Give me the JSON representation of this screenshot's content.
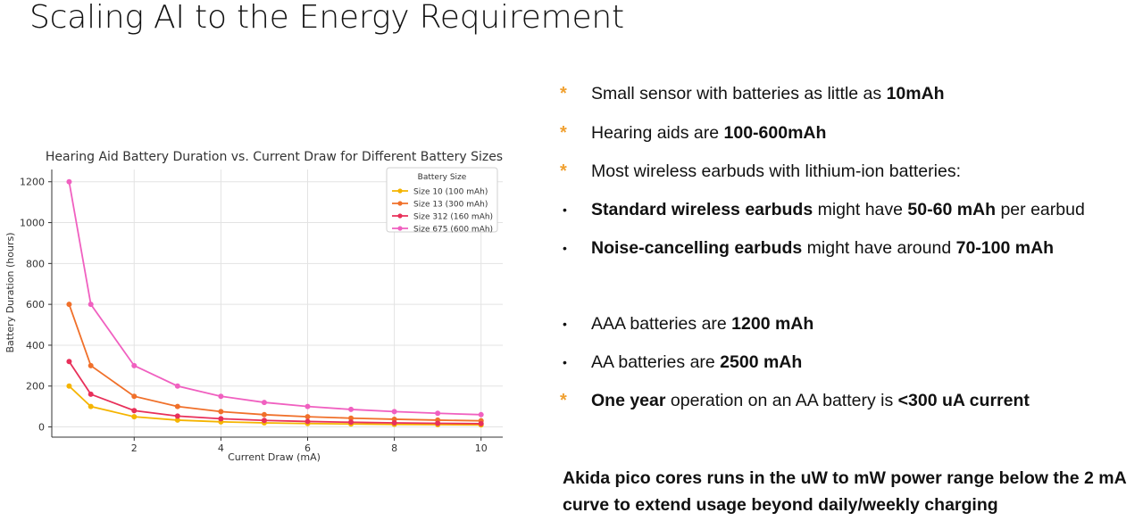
{
  "slide": {
    "title": "Scaling AI to the Energy Requirement",
    "footer": "Akida pico cores runs in the uW to mW power range below the 2 mA curve to extend usage beyond daily/weekly charging"
  },
  "bullets": [
    {
      "marker": "star",
      "parts": [
        {
          "t": "Small sensor with batteries as little as ",
          "b": false
        },
        {
          "t": "10mAh",
          "b": true
        }
      ]
    },
    {
      "marker": "star",
      "parts": [
        {
          "t": "Hearing aids are ",
          "b": false
        },
        {
          "t": "100-600mAh",
          "b": true
        }
      ]
    },
    {
      "marker": "star",
      "parts": [
        {
          "t": "Most wireless earbuds with lithium-ion batteries:",
          "b": false
        }
      ]
    },
    {
      "marker": "dot",
      "parts": [
        {
          "t": "Standard wireless earbuds",
          "b": true
        },
        {
          "t": " might have ",
          "b": false
        },
        {
          "t": "50-60 mAh",
          "b": true
        },
        {
          "t": " per earbud",
          "b": false
        }
      ]
    },
    {
      "marker": "dot",
      "parts": [
        {
          "t": "Noise-cancelling earbuds",
          "b": true
        },
        {
          "t": " might have around ",
          "b": false
        },
        {
          "t": "70-100 mAh",
          "b": true
        }
      ]
    },
    {
      "marker": "dot",
      "parts": [
        {
          "t": "AAA batteries are ",
          "b": false
        },
        {
          "t": "1200 mAh",
          "b": true
        }
      ]
    },
    {
      "marker": "dot",
      "parts": [
        {
          "t": "AA batteries are ",
          "b": false
        },
        {
          "t": "2500 mAh",
          "b": true
        }
      ]
    },
    {
      "marker": "star",
      "parts": [
        {
          "t": " One year",
          "b": true
        },
        {
          "t": " operation on an AA battery is ",
          "b": false
        },
        {
          "t": "<300 uA current",
          "b": true
        }
      ]
    }
  ],
  "icons": {
    "star": "asterisk-icon",
    "dot": "bullet-dot-icon"
  },
  "chart_data": {
    "type": "line",
    "title": "Hearing Aid Battery Duration vs. Current Draw for Different Battery Sizes",
    "xlabel": "Current Draw (mA)",
    "ylabel": "Battery Duration (hours)",
    "xlim": [
      0.1,
      10.5
    ],
    "ylim": [
      -50,
      1260
    ],
    "xticks": [
      2,
      4,
      6,
      8,
      10
    ],
    "yticks": [
      0,
      200,
      400,
      600,
      800,
      1000,
      1200
    ],
    "grid": true,
    "legend": {
      "title": "Battery Size",
      "placement": "top-right"
    },
    "x": [
      0.5,
      1,
      2,
      3,
      4,
      5,
      6,
      7,
      8,
      9,
      10
    ],
    "series": [
      {
        "name": "Size 10 (100 mAh)",
        "color": "#f5b400",
        "values": [
          200,
          100,
          50,
          33.3,
          25,
          20,
          16.7,
          14.3,
          12.5,
          11.1,
          10
        ]
      },
      {
        "name": "Size 13 (300 mAh)",
        "color": "#f0702a",
        "values": [
          600,
          300,
          150,
          100,
          75,
          60,
          50,
          42.9,
          37.5,
          33.3,
          30
        ]
      },
      {
        "name": "Size 312 (160 mAh)",
        "color": "#e8305a",
        "values": [
          320,
          160,
          80,
          53.3,
          40,
          32,
          26.7,
          22.9,
          20,
          17.8,
          16
        ]
      },
      {
        "name": "Size 675 (600 mAh)",
        "color": "#f060c0",
        "values": [
          1200,
          600,
          300,
          200,
          150,
          120,
          100,
          85.7,
          75,
          66.7,
          60
        ]
      }
    ]
  }
}
